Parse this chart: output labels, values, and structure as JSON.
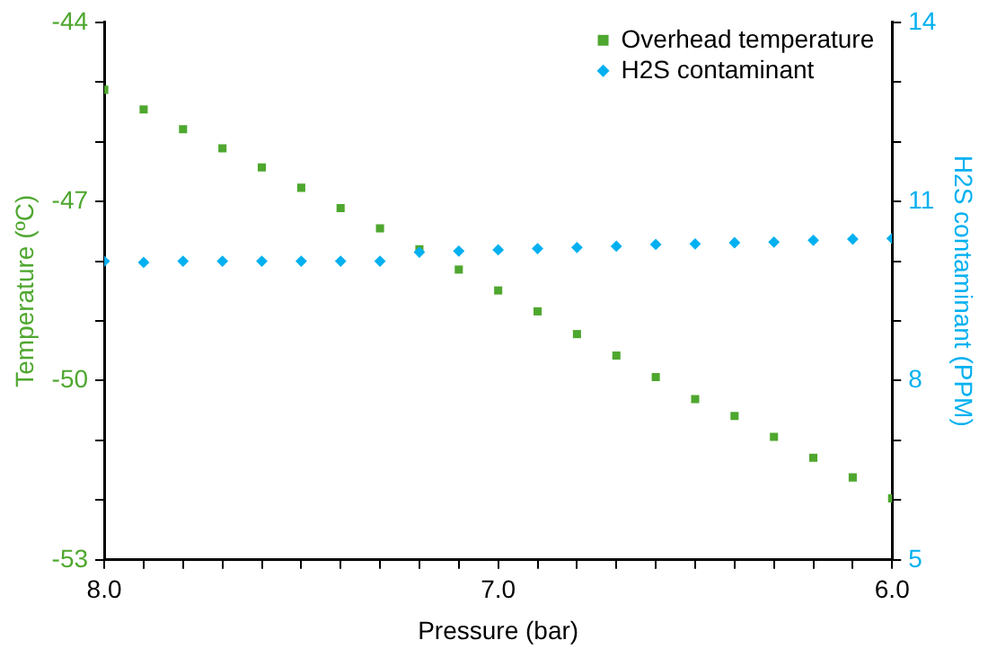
{
  "chart_data": {
    "type": "scatter",
    "xlabel": "Pressure (bar)",
    "ylabel": "Temperature (ºC)",
    "y2label": "H2S contaminant (PPM)",
    "x": [
      8.0,
      7.9,
      7.8,
      7.7,
      7.6,
      7.5,
      7.4,
      7.3,
      7.2,
      7.1,
      7.0,
      6.9,
      6.8,
      6.7,
      6.6,
      6.5,
      6.4,
      6.3,
      6.2,
      6.1,
      6.0
    ],
    "series": [
      {
        "name": "Overhead temperature",
        "color": "#4ea72e",
        "marker": "square",
        "values": [
          -45.13,
          -45.46,
          -45.79,
          -46.11,
          -46.43,
          -46.77,
          -47.11,
          -47.45,
          -47.8,
          -48.14,
          -48.49,
          -48.84,
          -49.22,
          -49.58,
          -49.94,
          -50.31,
          -50.59,
          -50.94,
          -51.29,
          -51.62,
          -51.97
        ]
      },
      {
        "name": "H2S contaminant",
        "color": "#00b0f0",
        "marker": "diamond",
        "axis": "y2",
        "values": [
          10.0,
          9.98,
          10.0,
          10.0,
          10.0,
          10.0,
          10.0,
          10.0,
          10.15,
          10.17,
          10.19,
          10.21,
          10.23,
          10.25,
          10.28,
          10.29,
          10.31,
          10.32,
          10.35,
          10.37,
          10.38
        ]
      }
    ],
    "xlim": [
      8.0,
      6.0
    ],
    "xticks": [
      {
        "value": 8.0,
        "label": "8.0"
      },
      {
        "value": 7.9,
        "label": null
      },
      {
        "value": 7.8,
        "label": null
      },
      {
        "value": 7.7,
        "label": null
      },
      {
        "value": 7.6,
        "label": null
      },
      {
        "value": 7.5,
        "label": null
      },
      {
        "value": 7.4,
        "label": null
      },
      {
        "value": 7.3,
        "label": null
      },
      {
        "value": 7.2,
        "label": null
      },
      {
        "value": 7.1,
        "label": null
      },
      {
        "value": 7.0,
        "label": "7.0"
      },
      {
        "value": 6.9,
        "label": null
      },
      {
        "value": 6.8,
        "label": null
      },
      {
        "value": 6.7,
        "label": null
      },
      {
        "value": 6.6,
        "label": null
      },
      {
        "value": 6.5,
        "label": null
      },
      {
        "value": 6.4,
        "label": null
      },
      {
        "value": 6.3,
        "label": null
      },
      {
        "value": 6.2,
        "label": null
      },
      {
        "value": 6.1,
        "label": null
      },
      {
        "value": 6.0,
        "label": "6.0"
      }
    ],
    "ylim": [
      -53,
      -44
    ],
    "yticks": [
      -53,
      {
        "value": -52,
        "label": null
      },
      {
        "value": -51,
        "label": null
      },
      -50,
      {
        "value": -49,
        "label": null
      },
      {
        "value": -48,
        "label": null
      },
      -47,
      {
        "value": -46,
        "label": null
      },
      {
        "value": -45,
        "label": null
      },
      -44
    ],
    "y2lim": [
      5,
      14
    ],
    "y2ticks": [
      5,
      {
        "value": 6,
        "label": null
      },
      {
        "value": 7,
        "label": null
      },
      8,
      {
        "value": 9,
        "label": null
      },
      {
        "value": 10,
        "label": null
      },
      11,
      {
        "value": 12,
        "label": null
      },
      {
        "value": 13,
        "label": null
      },
      14
    ],
    "grid": false,
    "legend": "top right"
  }
}
